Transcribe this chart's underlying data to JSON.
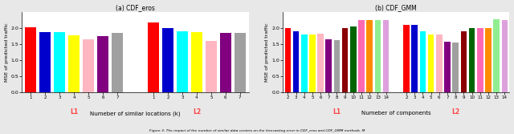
{
  "left_chart": {
    "title": "(a) CDF_eros",
    "xlabel": "Numeber of similar locations (k)",
    "ylabel": "MSE of predicted traffic",
    "group1": {
      "label": "L1",
      "x_ticks": [
        "1",
        "2",
        "3",
        "4",
        "5",
        "6",
        "7"
      ],
      "values": [
        2.03,
        1.88,
        1.88,
        1.78,
        1.65,
        1.75,
        1.86
      ],
      "colors": [
        "#ff0000",
        "#0000cd",
        "#00ffff",
        "#ffff00",
        "#ffb6c1",
        "#800080",
        "#a0a0a0"
      ]
    },
    "group2": {
      "label": "L2",
      "x_ticks": [
        "1",
        "2",
        "3",
        "4",
        "5",
        "6",
        "7"
      ],
      "values": [
        2.18,
        2.02,
        1.9,
        1.88,
        1.6,
        1.85,
        1.86
      ],
      "colors": [
        "#ff0000",
        "#0000cd",
        "#00ffff",
        "#ffff00",
        "#ffb6c1",
        "#800080",
        "#a0a0a0"
      ]
    },
    "ylim": [
      0.0,
      2.5
    ],
    "yticks": [
      0.0,
      0.5,
      1.0,
      1.5,
      2.0
    ]
  },
  "right_chart": {
    "title": "(b) CDF_GMM",
    "xlabel": "Numeber of components",
    "ylabel": "MSE of predicted traffic",
    "group1": {
      "label": "L1",
      "x_ticks": [
        "2",
        "3",
        "4",
        "5",
        "6",
        "7",
        "8",
        "9",
        "10",
        "11",
        "12",
        "13",
        "14"
      ],
      "values": [
        2.01,
        1.9,
        1.81,
        1.8,
        1.83,
        1.66,
        1.64,
        2.0,
        2.05,
        2.26,
        2.26,
        2.26,
        2.25
      ],
      "colors": [
        "#ff0000",
        "#0000cd",
        "#00ffff",
        "#ffff00",
        "#ffb6c1",
        "#800080",
        "#a0a0a0",
        "#8b0000",
        "#006400",
        "#ff69b4",
        "#ff8c00",
        "#90ee90",
        "#dda0dd"
      ]
    },
    "group2": {
      "label": "L2",
      "x_ticks": [
        "2",
        "3",
        "4",
        "5",
        "6",
        "7",
        "8",
        "9",
        "10",
        "11",
        "12",
        "13",
        "14"
      ],
      "values": [
        2.1,
        2.1,
        1.91,
        1.8,
        1.8,
        1.58,
        1.56,
        1.9,
        2.02,
        2.01,
        2.01,
        2.28,
        2.25
      ],
      "colors": [
        "#ff0000",
        "#0000cd",
        "#00ffff",
        "#ffff00",
        "#ffb6c1",
        "#800080",
        "#a0a0a0",
        "#8b0000",
        "#006400",
        "#ff69b4",
        "#ff8c00",
        "#90ee90",
        "#dda0dd"
      ]
    },
    "ylim": [
      0.0,
      2.5
    ],
    "yticks": [
      0.0,
      0.5,
      1.0,
      1.5,
      2.0
    ]
  },
  "caption": "Figure 3: The impact of the number of similar data centers on the forecasting error in CDF_eros and CDF_GMM methods. M",
  "label_color": "#ff4444",
  "background_color": "#e8e8e8"
}
